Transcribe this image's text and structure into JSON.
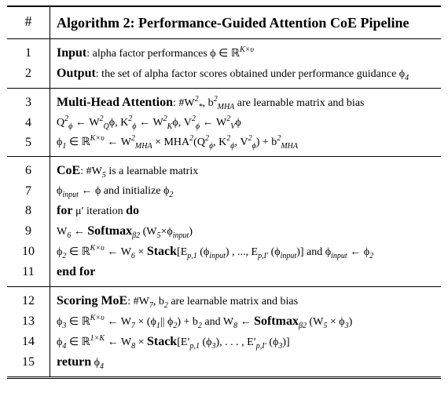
{
  "header": {
    "number_label": "#",
    "title": "Algorithm 2: Performance-Guided Attention CoE Pipeline"
  },
  "sections": [
    [
      {
        "number": "1",
        "parts": [
          "Input",
          ": alpha factor performances ϕ ∈ ℝ",
          "K×υ"
        ]
      },
      {
        "number": "2",
        "parts": [
          "Output",
          ": the set of alpha factor scores obtained under performance guidance ϕ",
          "4"
        ]
      }
    ],
    [
      {
        "number": "3",
        "parts": [
          "Multi-Head Attention",
          ": #W",
          "2",
          "*",
          ", b",
          "2",
          "MHA",
          " are learnable matrix and bias"
        ]
      },
      {
        "number": "4",
        "parts": [
          "Q",
          "2",
          "ϕ",
          " ← W",
          "2",
          "Q",
          "ϕ, K",
          "2",
          "ϕ",
          " ← W",
          "2",
          "K",
          "ϕ, V",
          "2",
          "ϕ",
          " ← W",
          "2",
          "V",
          "ϕ"
        ]
      },
      {
        "number": "5",
        "parts": [
          "ϕ",
          "1",
          " ∈ ℝ",
          "K×υ",
          " ← W",
          "2",
          "MHA",
          " × MHA",
          "2",
          "(Q",
          "2",
          "ϕ",
          ", K",
          "2",
          "ϕ",
          ", V",
          "2",
          "ϕ",
          ") + b",
          "2",
          "MHA"
        ]
      }
    ],
    [
      {
        "number": "6",
        "parts": [
          "CoE",
          ": #W",
          "5",
          " is a learnable matrix"
        ]
      },
      {
        "number": "7",
        "parts": [
          "ϕ",
          "input",
          " ← ϕ and initialize ϕ",
          "2"
        ]
      },
      {
        "number": "8",
        "parts": [
          "for",
          " μ′ iteration ",
          "do"
        ]
      },
      {
        "number": "9",
        "parts": [
          "W",
          "6",
          " ← ",
          "Softmax",
          "β2",
          " (W",
          "5",
          "×ϕ",
          "input",
          ")"
        ]
      },
      {
        "number": "10",
        "parts": [
          "ϕ",
          "2",
          " ∈ ℝ",
          "K×υ",
          " ← W",
          "6",
          " × ",
          "Stack",
          "[E",
          "p,1",
          " (ϕ",
          "input",
          ") , ..., E",
          "p,I′",
          " (ϕ",
          "input",
          ")] and ϕ",
          "input",
          " ← ϕ",
          "2"
        ]
      },
      {
        "number": "11",
        "parts": [
          "end for"
        ]
      }
    ],
    [
      {
        "number": "12",
        "parts": [
          "Scoring MoE",
          ": #W",
          "7",
          ", b",
          "2",
          " are learnable matrix and bias"
        ]
      },
      {
        "number": "13",
        "parts": [
          "ϕ",
          "3",
          " ∈ ℝ",
          "K×υ",
          " ← W",
          "7",
          " × (ϕ",
          "1",
          "|| ϕ",
          "2",
          ") + b",
          "2",
          " and W",
          "8",
          " ← ",
          "Softmax",
          "β2",
          " (W",
          "5",
          " × ϕ",
          "3",
          ")"
        ]
      },
      {
        "number": "14",
        "parts": [
          "ϕ",
          "4",
          " ∈ ℝ",
          "1×K",
          " ← W",
          "8",
          " × ",
          "Stack",
          "[E′",
          "p,1",
          " (ϕ",
          "3",
          "), . . . , E′",
          "p,I′",
          " (ϕ",
          "3",
          ")]"
        ]
      },
      {
        "number": "15",
        "parts": [
          "return",
          " ϕ",
          "4"
        ]
      }
    ]
  ]
}
